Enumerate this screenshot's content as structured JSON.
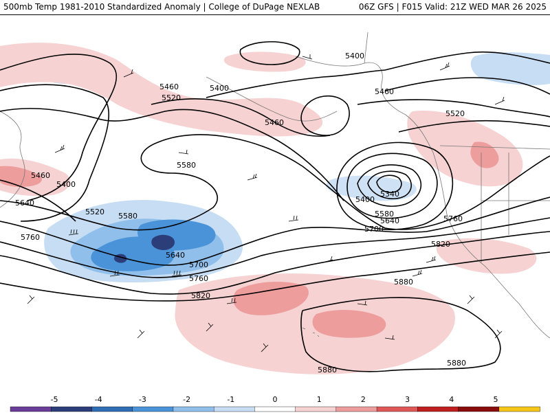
{
  "header": {
    "left_text": "500mb Temp 1981-2010 Standardized Anomaly | College of DuPage NEXLAB",
    "right_text": "06Z GFS | F015 Valid: 21Z WED MAR 26 2025"
  },
  "contour_labels": [
    "5400",
    "5460",
    "5520",
    "5580",
    "5640",
    "5700",
    "5760",
    "5820",
    "5880",
    "5340"
  ],
  "colorbar": {
    "ticks": [
      "-5",
      "-4",
      "-3",
      "-2",
      "-1",
      "0",
      "1",
      "2",
      "3",
      "4",
      "5"
    ],
    "colors": [
      "#6a3d9a",
      "#2c3e7a",
      "#2f6db5",
      "#4a93d8",
      "#8fbfea",
      "#c7ddf3",
      "#ffffff",
      "#f6d2d2",
      "#ee9d9d",
      "#e05757",
      "#c01f1f",
      "#8b0c0c",
      "#f5c518"
    ]
  }
}
